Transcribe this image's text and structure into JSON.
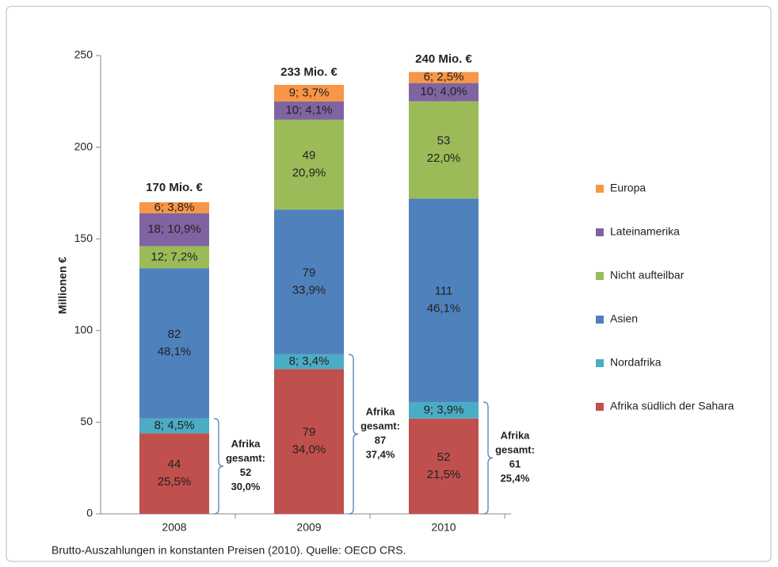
{
  "chart_data": {
    "type": "stacked_bar",
    "y_label": "Millionen €",
    "footnote": "Brutto-Auszahlungen in konstanten Preisen (2010). Quelle: OECD CRS.",
    "categories": [
      "2008",
      "2009",
      "2010"
    ],
    "series": [
      {
        "name": "Afrika südlich der Sahara",
        "color": "#c0504d",
        "values": [
          44,
          79,
          52
        ],
        "value_labels": [
          "44\n25,5%",
          "79\n34,0%",
          "52\n21,5%"
        ]
      },
      {
        "name": "Nordafrika",
        "color": "#4bacc6",
        "values": [
          8,
          8,
          9
        ],
        "value_labels": [
          "8; 4,5%",
          "8; 3,4%",
          "9; 3,9%"
        ]
      },
      {
        "name": "Asien",
        "color": "#4f81bd",
        "values": [
          82,
          79,
          111
        ],
        "value_labels": [
          "82\n48,1%",
          "79\n33,9%",
          "111\n46,1%"
        ]
      },
      {
        "name": "Nicht aufteilbar",
        "color": "#9bbb59",
        "values": [
          12,
          49,
          53
        ],
        "value_labels": [
          "12; 7,2%",
          "49\n20,9%",
          "53\n22,0%"
        ]
      },
      {
        "name": "Lateinamerika",
        "color": "#8064a2",
        "values": [
          18,
          10,
          10
        ],
        "value_labels": [
          "18; 10,9%",
          "10; 4,1%",
          "10; 4,0%"
        ]
      },
      {
        "name": "Europa",
        "color": "#f79646",
        "values": [
          6,
          9,
          6
        ],
        "value_labels": [
          "6; 3,8%",
          "9; 3,7%",
          "6; 2,5%"
        ]
      }
    ],
    "totals": {
      "values": [
        170,
        233,
        240
      ],
      "value_labels": [
        "170 Mio. €",
        "233 Mio. €",
        "240 Mio. €"
      ]
    },
    "annotations": [
      "Afrika\ngesamt:\n52\n30,0%",
      "Afrika\ngesamt:\n87\n37,4%",
      "Afrika\ngesamt:\n61\n25,4%"
    ],
    "ylim": [
      0,
      250
    ],
    "yticks": [
      0,
      50,
      100,
      150,
      200,
      250
    ],
    "grid": false,
    "legend": "right"
  }
}
